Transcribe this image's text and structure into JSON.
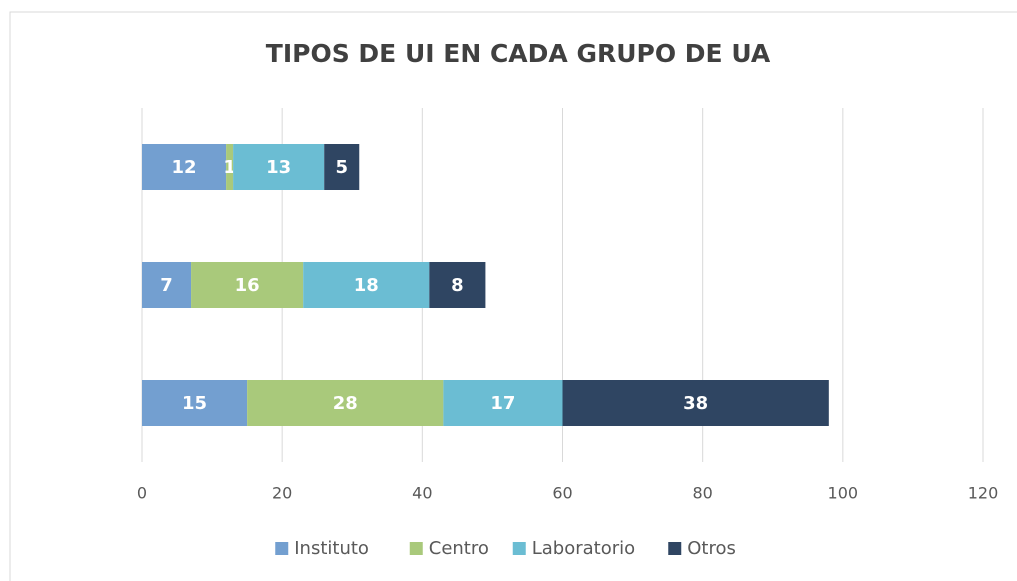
{
  "chart_data": {
    "type": "bar",
    "orientation": "horizontal",
    "stacked": true,
    "title": "TIPOS DE UI EN CADA GRUPO DE UA",
    "categories": [
      null,
      null,
      null
    ],
    "series": [
      {
        "name": "Instituto",
        "color": "#739fd0",
        "values": [
          12,
          7,
          15
        ]
      },
      {
        "name": "Centro",
        "color": "#a9c97b",
        "values": [
          1,
          16,
          28
        ]
      },
      {
        "name": "Laboratorio",
        "color": "#6bbdd3",
        "values": [
          13,
          18,
          17
        ]
      },
      {
        "name": "Otros",
        "color": "#2f4562",
        "values": [
          5,
          8,
          38
        ]
      }
    ],
    "xlim": [
      0,
      120
    ],
    "xticks": [
      0,
      20,
      40,
      60,
      80,
      100,
      120
    ],
    "grid": true,
    "legend": "bottom"
  }
}
